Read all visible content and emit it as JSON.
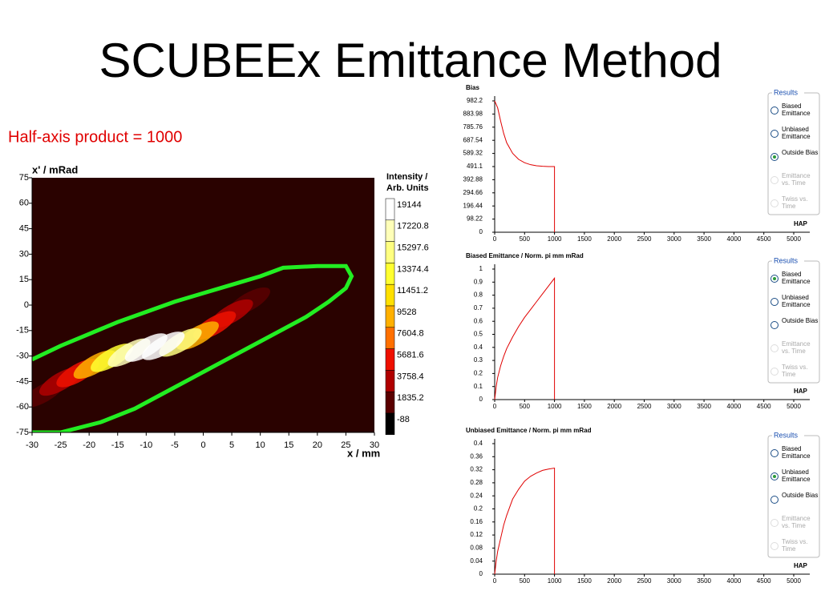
{
  "slide": {
    "title": "SCUBEEx Emittance Method",
    "subtitle": "Half-axis product = 1000"
  },
  "chart_data": [
    {
      "type": "heatmap",
      "ylabel": "x' / mRad",
      "xlabel": "x / mm",
      "xlim": [
        -30,
        30
      ],
      "xticks": [
        -30,
        -25,
        -20,
        -15,
        -10,
        -5,
        0,
        5,
        10,
        15,
        20,
        25,
        30
      ],
      "ylim": [
        -75,
        75
      ],
      "yticks": [
        -75,
        -60,
        -45,
        -30,
        -15,
        0,
        15,
        30,
        45,
        60,
        75
      ],
      "colorbar_label": [
        "Intensity /",
        "Arb. Units"
      ],
      "levels": [
        19144,
        17220.8,
        15297.6,
        13374.4,
        11451.2,
        9528,
        7604.8,
        5681.6,
        3758.4,
        1835.2,
        -88
      ],
      "level_colors": [
        "#ffffff",
        "#ffffb8",
        "#ffff80",
        "#ffff30",
        "#ffe000",
        "#ffb000",
        "#ff7000",
        "#ee1000",
        "#b00000",
        "#5a0000",
        "#000000"
      ],
      "hotspots": {
        "x": [
          8,
          -28,
          5,
          -25,
          2,
          -22,
          -1,
          -19,
          -4,
          -16,
          -13,
          -7,
          -10
        ],
        "y": [
          2,
          -52,
          -5,
          -45,
          -12,
          -40,
          -18,
          -35,
          -22,
          -31,
          -28,
          -24,
          -25
        ],
        "values": [
          1835.2,
          1835.2,
          3758.4,
          3758.4,
          5681.6,
          5681.6,
          9528,
          9528,
          15297.6,
          13374.4,
          17220.8,
          19144,
          19144
        ]
      },
      "ellipse": {
        "color": "#22ee22",
        "x": [
          -30,
          -25,
          -20,
          -15,
          -10,
          -5,
          0,
          5,
          10,
          14,
          20,
          25,
          26,
          25,
          22,
          18,
          13,
          8,
          3,
          -2,
          -7,
          -12,
          -18,
          -25,
          -30
        ],
        "y": [
          -32,
          -24,
          -17,
          -10,
          -4,
          2,
          7,
          12,
          17,
          22,
          23,
          23,
          17,
          10,
          2,
          -7,
          -16,
          -25,
          -34,
          -43,
          -52,
          -61,
          -69,
          -75,
          -75
        ]
      }
    },
    {
      "type": "line",
      "title": "Bias",
      "xlabel": "HAP",
      "color": "#e00000",
      "xlim": [
        0,
        5000
      ],
      "xticks": [
        0,
        500,
        1000,
        1500,
        2000,
        2500,
        3000,
        3500,
        4000,
        4500,
        5000
      ],
      "ylim": [
        0,
        982.2
      ],
      "yticks": [
        0,
        98.22,
        196.44,
        294.66,
        392.88,
        491.1,
        589.32,
        687.54,
        785.76,
        883.98,
        982.2
      ],
      "x": [
        0,
        50,
        100,
        150,
        200,
        300,
        400,
        500,
        600,
        700,
        800,
        900,
        1000,
        1000
      ],
      "values": [
        982,
        930,
        830,
        740,
        670,
        590,
        545,
        520,
        505,
        497,
        493,
        491,
        491,
        0
      ],
      "results": {
        "title": "Results",
        "options": [
          "Biased Emittance",
          "Unbiased Emittance",
          "Outside Bias",
          "Emittance vs. Time",
          "Twiss vs. Time"
        ],
        "enabled": [
          true,
          true,
          true,
          false,
          false
        ],
        "selected": 2
      }
    },
    {
      "type": "line",
      "title": "Biased Emittance / Norm. pi mm mRad",
      "xlabel": "HAP",
      "color": "#e00000",
      "xlim": [
        0,
        5000
      ],
      "xticks": [
        0,
        500,
        1000,
        1500,
        2000,
        2500,
        3000,
        3500,
        4000,
        4500,
        5000
      ],
      "ylim": [
        0,
        1
      ],
      "yticks": [
        0,
        0.1,
        0.2,
        0.3,
        0.4,
        0.5,
        0.6,
        0.7,
        0.8,
        0.9,
        1
      ],
      "x": [
        0,
        25,
        50,
        100,
        150,
        200,
        300,
        400,
        500,
        600,
        700,
        800,
        900,
        1000,
        1000
      ],
      "values": [
        0,
        0.1,
        0.17,
        0.26,
        0.33,
        0.39,
        0.48,
        0.56,
        0.63,
        0.69,
        0.75,
        0.81,
        0.87,
        0.93,
        0
      ],
      "results": {
        "title": "Results",
        "options": [
          "Biased Emittance",
          "Unbiased Emittance",
          "Outside Bias",
          "Emittance vs. Time",
          "Twiss vs. Time"
        ],
        "enabled": [
          true,
          true,
          true,
          false,
          false
        ],
        "selected": 0
      }
    },
    {
      "type": "line",
      "title": "Unbiased Emittance / Norm. pi mm mRad",
      "xlabel": "HAP",
      "color": "#e00000",
      "xlim": [
        0,
        5000
      ],
      "xticks": [
        0,
        500,
        1000,
        1500,
        2000,
        2500,
        3000,
        3500,
        4000,
        4500,
        5000
      ],
      "ylim": [
        0,
        0.4
      ],
      "yticks": [
        0,
        0.04,
        0.08,
        0.12,
        0.16,
        0.2,
        0.24,
        0.28,
        0.32,
        0.36,
        0.4
      ],
      "x": [
        0,
        25,
        50,
        100,
        150,
        200,
        300,
        400,
        500,
        600,
        700,
        800,
        900,
        1000,
        1000
      ],
      "values": [
        0,
        0.04,
        0.07,
        0.11,
        0.15,
        0.18,
        0.23,
        0.26,
        0.285,
        0.3,
        0.31,
        0.318,
        0.322,
        0.325,
        0
      ],
      "results": {
        "title": "Results",
        "options": [
          "Biased Emittance",
          "Unbiased Emittance",
          "Outside Bias",
          "Emittance vs. Time",
          "Twiss vs. Time"
        ],
        "enabled": [
          true,
          true,
          true,
          false,
          false
        ],
        "selected": 1
      }
    }
  ]
}
